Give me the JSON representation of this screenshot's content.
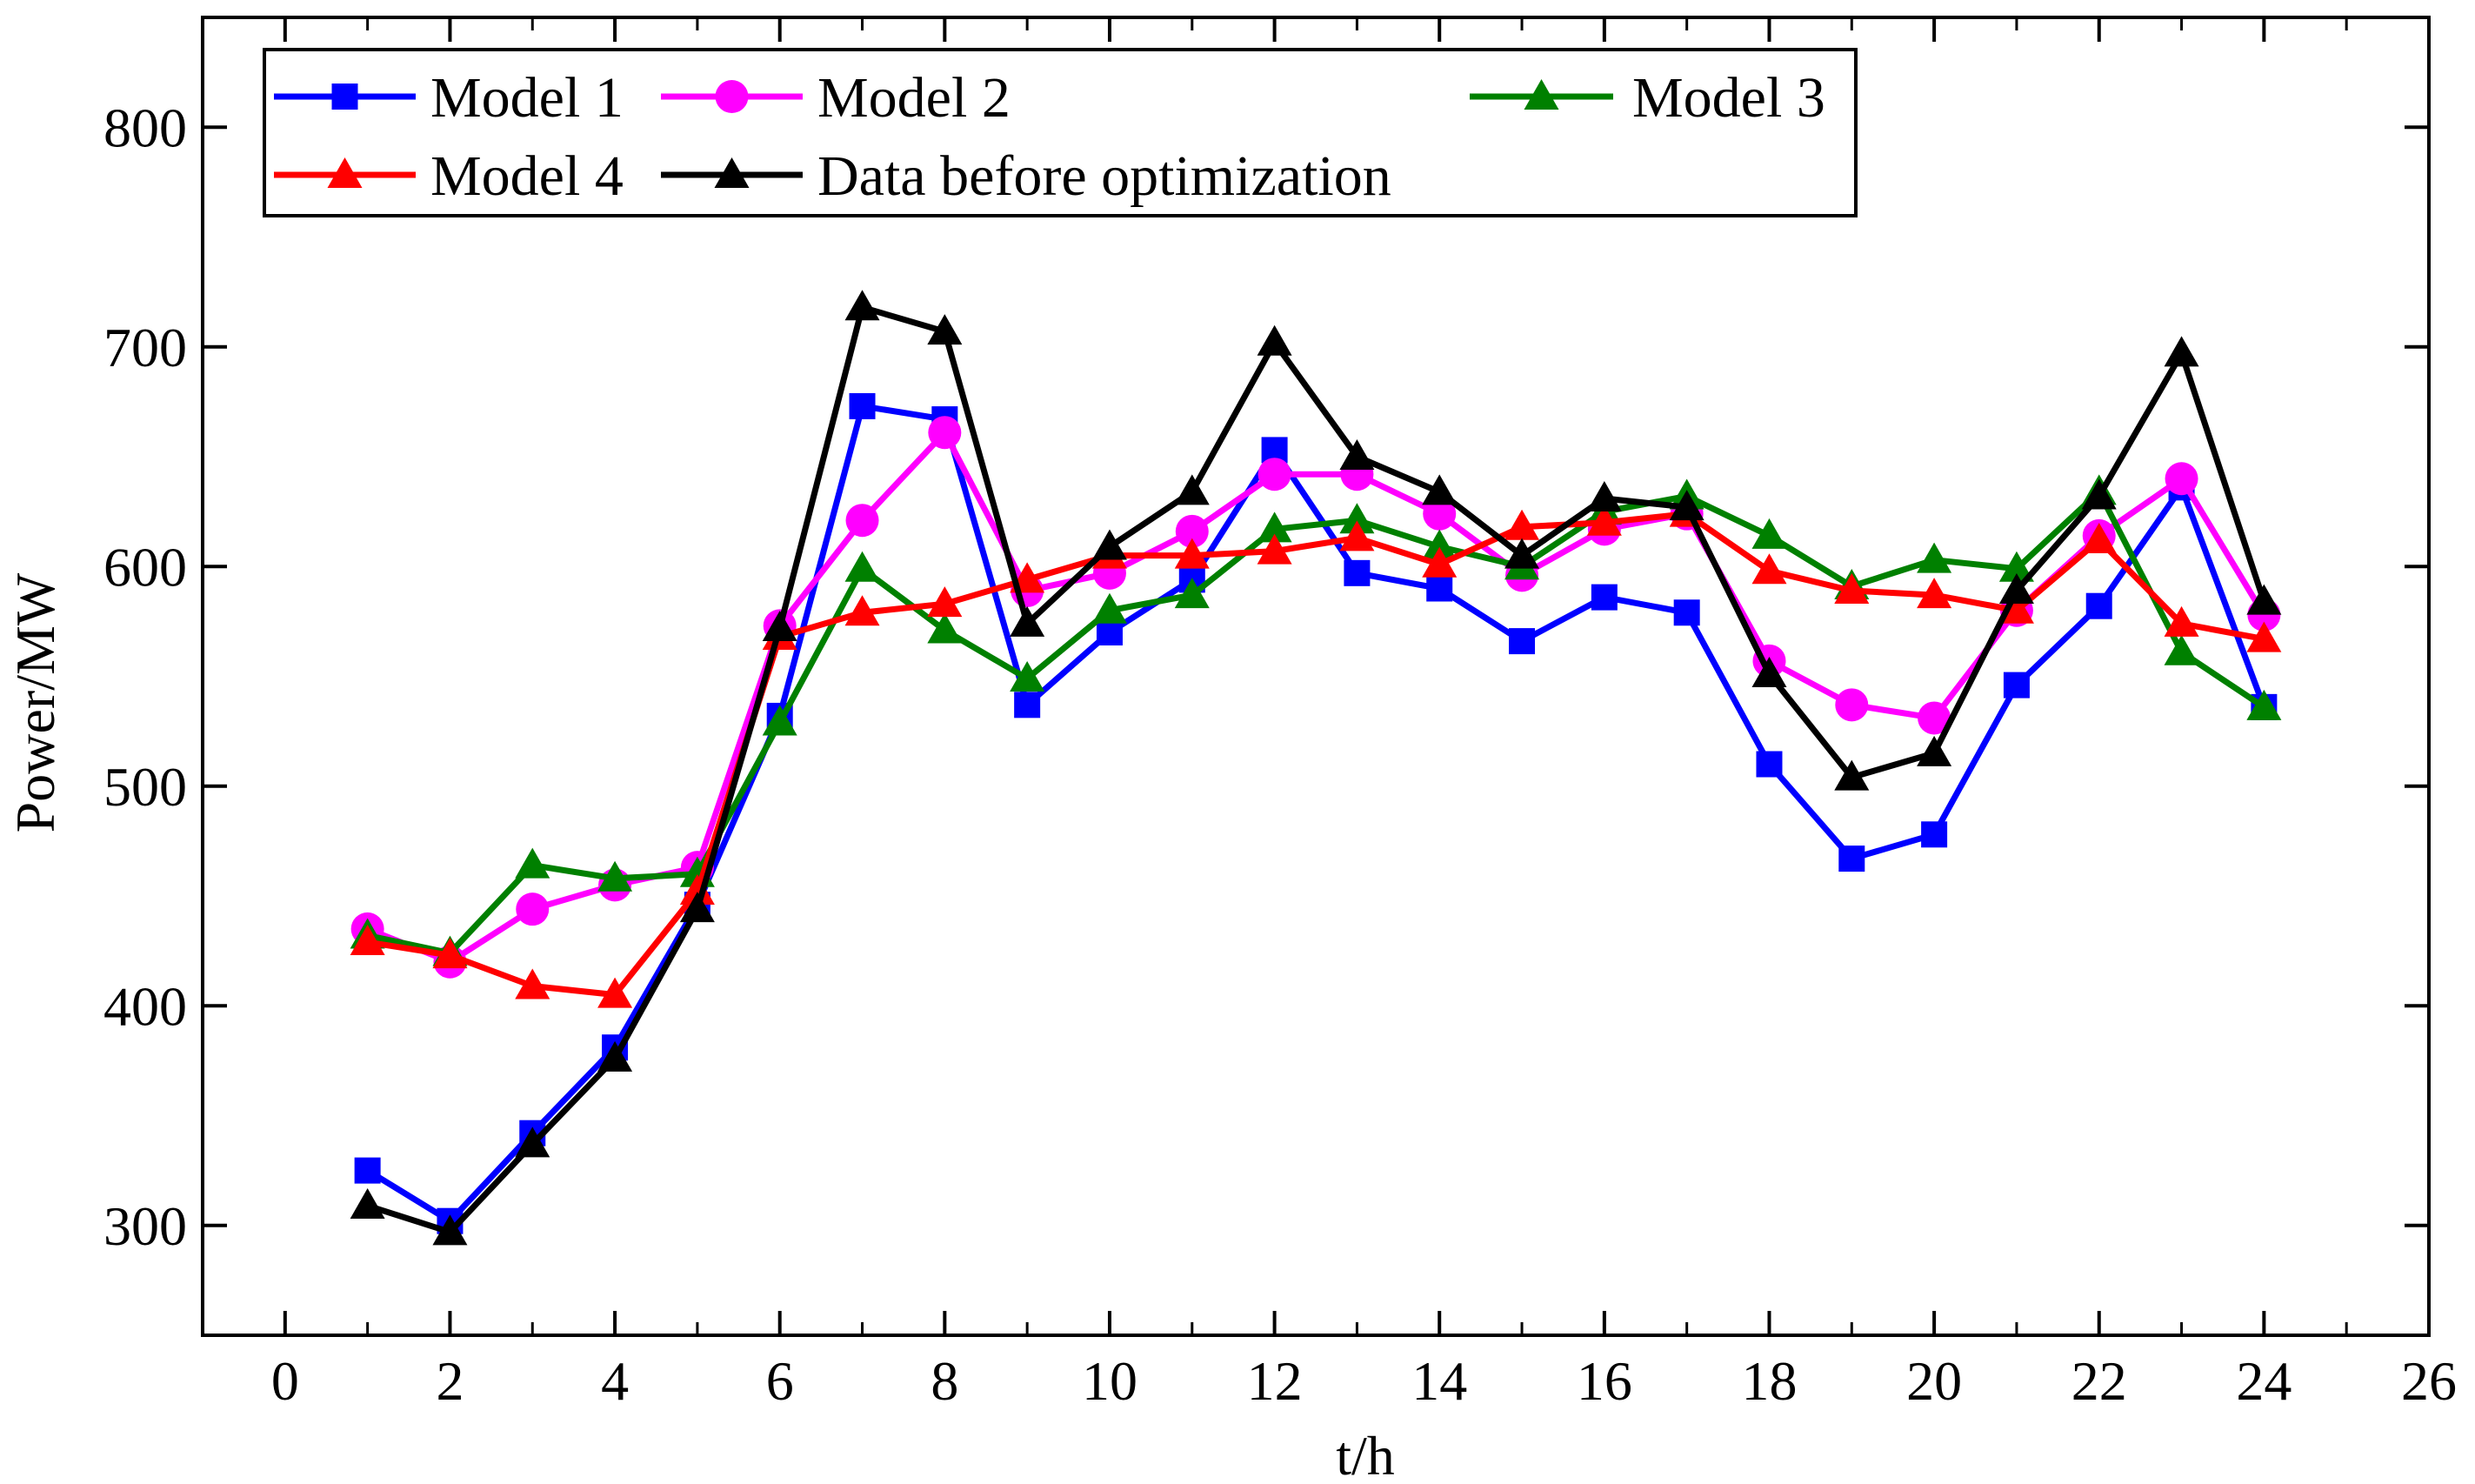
{
  "chart_data": {
    "type": "line",
    "title": "",
    "xlabel": "t/h",
    "ylabel": "Power/MW",
    "xlim": [
      -1,
      26
    ],
    "ylim": [
      250,
      850
    ],
    "xticks": [
      0,
      2,
      4,
      6,
      8,
      10,
      12,
      14,
      16,
      18,
      20,
      22,
      24,
      26
    ],
    "yticks": [
      300,
      400,
      500,
      600,
      700,
      800
    ],
    "x": [
      1,
      2,
      3,
      4,
      5,
      6,
      7,
      8,
      9,
      10,
      11,
      12,
      13,
      14,
      15,
      16,
      17,
      18,
      19,
      20,
      21,
      22,
      23,
      24
    ],
    "legend_position": "top",
    "series": [
      {
        "name": "Model 1",
        "color": "#0000FF",
        "marker": "square",
        "values": [
          325,
          302,
          342,
          381,
          446,
          532,
          673,
          667,
          537,
          570,
          594,
          653,
          597,
          590,
          566,
          586,
          579,
          510,
          467,
          478,
          546,
          582,
          636,
          536
        ]
      },
      {
        "name": "Model 2",
        "color": "#FF00FF",
        "marker": "circle",
        "values": [
          435,
          420,
          444,
          455,
          463,
          573,
          621,
          661,
          589,
          597,
          616,
          642,
          642,
          624,
          596,
          617,
          624,
          557,
          537,
          531,
          580,
          614,
          640,
          578
        ]
      },
      {
        "name": "Model 3",
        "color": "#008000",
        "marker": "triangle",
        "values": [
          432,
          424,
          464,
          458,
          460,
          529,
          599,
          571,
          549,
          580,
          587,
          617,
          621,
          609,
          600,
          625,
          632,
          614,
          591,
          603,
          599,
          634,
          561,
          536
        ]
      },
      {
        "name": "Model 4",
        "color": "#FF0000",
        "marker": "triangle",
        "values": [
          429,
          423,
          409,
          405,
          452,
          568,
          579,
          583,
          594,
          605,
          605,
          607,
          613,
          601,
          618,
          620,
          624,
          598,
          589,
          587,
          580,
          612,
          574,
          567
        ]
      },
      {
        "name": "Data before optimization",
        "color": "#000000",
        "marker": "triangle",
        "values": [
          309,
          297,
          337,
          376,
          444,
          572,
          718,
          707,
          574,
          609,
          634,
          702,
          650,
          634,
          605,
          631,
          627,
          551,
          504,
          515,
          589,
          632,
          697,
          584
        ]
      }
    ]
  }
}
